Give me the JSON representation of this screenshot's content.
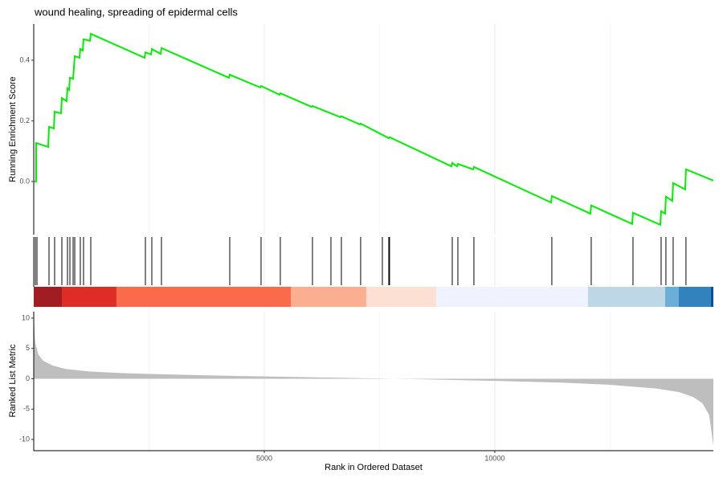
{
  "chart_data": [
    {
      "type": "line",
      "title": "wound healing, spreading of epidermal cells",
      "ylabel": "Running Enrichment Score",
      "x": [
        17,
        52,
        52,
        314,
        331,
        436,
        453,
        592,
        610,
        714,
        732,
        767,
        784,
        854,
        889,
        993,
        1010,
        1063,
        1080,
        1220,
        1237,
        2404,
        2422,
        2544,
        2561,
        2753,
        2770,
        4233,
        4251,
        4913,
        4930,
        5331,
        5348,
        6028,
        6045,
        6655,
        6672,
        7073,
        7090,
        7700,
        7718,
        9059,
        9077,
        9181,
        9199,
        9530,
        9547,
        11219,
        11237,
        12073,
        12091,
        12979,
        12997,
        13590,
        13607,
        13694,
        13711,
        13850,
        13868,
        14129,
        14146,
        14740
      ],
      "series": [
        {
          "color": "#00ee00",
          "values": [
            0,
            0,
            0.127,
            0.114,
            0.18,
            0.175,
            0.23,
            0.225,
            0.275,
            0.265,
            0.307,
            0.302,
            0.342,
            0.339,
            0.413,
            0.408,
            0.437,
            0.432,
            0.469,
            0.464,
            0.487,
            0.408,
            0.426,
            0.419,
            0.437,
            0.421,
            0.44,
            0.342,
            0.352,
            0.31,
            0.315,
            0.286,
            0.291,
            0.246,
            0.249,
            0.212,
            0.215,
            0.188,
            0.191,
            0.143,
            0.146,
            0.05,
            0.061,
            0.05,
            0.058,
            0.04,
            0.048,
            -0.069,
            -0.048,
            -0.106,
            -0.079,
            -0.14,
            -0.103,
            -0.143,
            -0.098,
            -0.106,
            -0.05,
            -0.064,
            -0.005,
            -0.026,
            0.04,
            0.003
          ]
        }
      ],
      "xlim": [
        0,
        14740
      ],
      "ylim": [
        -0.175,
        0.519
      ],
      "yticks": [
        {
          "value": 0,
          "label": "0.0"
        },
        0.2,
        0.4
      ]
    },
    {
      "type": "rug",
      "color": "#000000",
      "hits": [
        35,
        70,
        331,
        453,
        610,
        732,
        784,
        854,
        889,
        1010,
        1080,
        1237,
        2422,
        2561,
        2770,
        4251,
        4930,
        5348,
        6045,
        6446,
        6672,
        7090,
        7561,
        7700,
        7718,
        9077,
        9199,
        9547,
        11237,
        12091,
        12997,
        13607,
        13711,
        13868,
        14146
      ],
      "xlim": [
        0,
        14740
      ],
      "color_bar": [
        {
          "start": 0,
          "end": 610,
          "color": "#a11d21"
        },
        {
          "start": 610,
          "end": 1794,
          "color": "#de2d26"
        },
        {
          "start": 1794,
          "end": 5575,
          "color": "#fb6a4a"
        },
        {
          "start": 5575,
          "end": 7212,
          "color": "#fcae91"
        },
        {
          "start": 7212,
          "end": 8728,
          "color": "#fee0d2"
        },
        {
          "start": 8728,
          "end": 12021,
          "color": "#eff3ff"
        },
        {
          "start": 12021,
          "end": 13693,
          "color": "#bdd7e7"
        },
        {
          "start": 13693,
          "end": 13989,
          "color": "#6baed6"
        },
        {
          "start": 13989,
          "end": 14686,
          "color": "#3182bd"
        },
        {
          "start": 14686,
          "end": 14740,
          "color": "#08519c"
        }
      ]
    },
    {
      "type": "area",
      "ylabel": "Ranked List Metric",
      "xlabel": "Rank in Ordered Dataset",
      "color": "#bebebe",
      "x": [
        1,
        30,
        100,
        200,
        400,
        700,
        1200,
        2000,
        3000,
        4500,
        6000,
        7500,
        8500,
        10000,
        11500,
        12500,
        13500,
        14000,
        14300,
        14500,
        14650,
        14740
      ],
      "values": [
        10.5,
        6,
        4,
        3,
        2.2,
        1.6,
        1.2,
        0.9,
        0.7,
        0.45,
        0.25,
        0.05,
        -0.1,
        -0.35,
        -0.65,
        -1,
        -1.6,
        -2.2,
        -3,
        -4,
        -6,
        -11
      ],
      "xlim": [
        0,
        14740
      ],
      "ylim": [
        -11.85,
        11.05
      ],
      "xticks": [
        5000,
        10000
      ],
      "xminor": [
        2500,
        7500,
        12500
      ],
      "yticks": [
        -10,
        -5,
        0,
        5,
        10
      ]
    }
  ]
}
